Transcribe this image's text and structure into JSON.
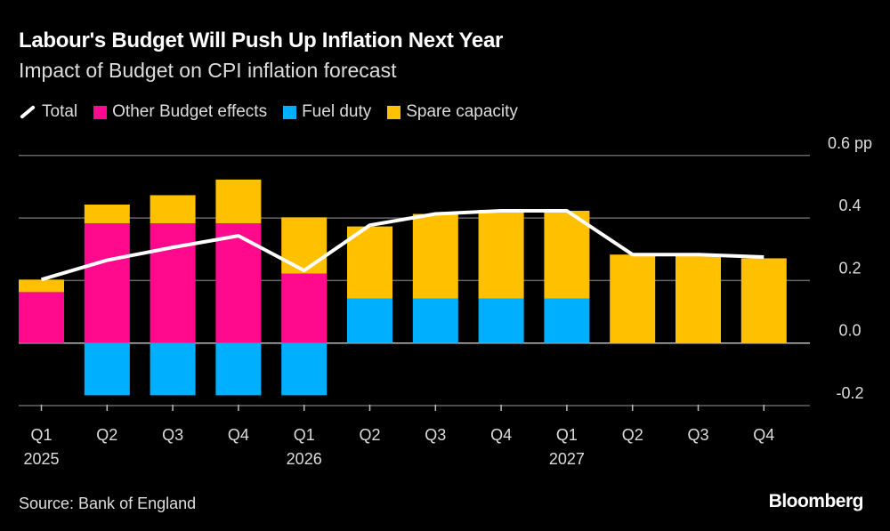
{
  "chart_data": {
    "type": "bar",
    "title": "Labour's Budget Will Push Up Inflation Next Year",
    "subtitle": "Impact of Budget on CPI inflation forecast",
    "categories": [
      "Q1",
      "Q2",
      "Q3",
      "Q4",
      "Q1",
      "Q2",
      "Q3",
      "Q4",
      "Q1",
      "Q2",
      "Q3",
      "Q4"
    ],
    "year_labels": [
      "2025",
      "",
      "",
      "",
      "2026",
      "",
      "",
      "",
      "2027",
      "",
      "",
      ""
    ],
    "series": [
      {
        "name": "Other Budget effects",
        "color": "#ff0a8c",
        "values": [
          0.163,
          0.383,
          0.383,
          0.383,
          0.222,
          0,
          0,
          0,
          0,
          0,
          0,
          0
        ]
      },
      {
        "name": "Fuel duty",
        "color": "#00b0ff",
        "values": [
          0,
          -0.167,
          -0.167,
          -0.167,
          -0.167,
          0.142,
          0.142,
          0.142,
          0.142,
          0,
          0,
          0
        ]
      },
      {
        "name": "Spare capacity",
        "color": "#ffc000",
        "values": [
          0.04,
          0.06,
          0.09,
          0.14,
          0.18,
          0.231,
          0.271,
          0.284,
          0.281,
          0.283,
          0.283,
          0.271
        ]
      }
    ],
    "line": {
      "name": "Total",
      "color": "#ffffff",
      "values": [
        0.203,
        0.265,
        0.306,
        0.343,
        0.232,
        0.377,
        0.413,
        0.423,
        0.423,
        0.283,
        0.283,
        0.275
      ]
    },
    "y_ticks": [
      "0.6 pp",
      "0.4",
      "0.2",
      "0.0",
      "-0.2"
    ],
    "y_tick_values": [
      0.6,
      0.4,
      0.2,
      0.0,
      -0.2
    ],
    "ylim": [
      -0.2,
      0.6
    ],
    "grid": true,
    "legend": "top-left",
    "stacked": true
  },
  "source": "Source: Bank of England",
  "brand": "Bloomberg"
}
